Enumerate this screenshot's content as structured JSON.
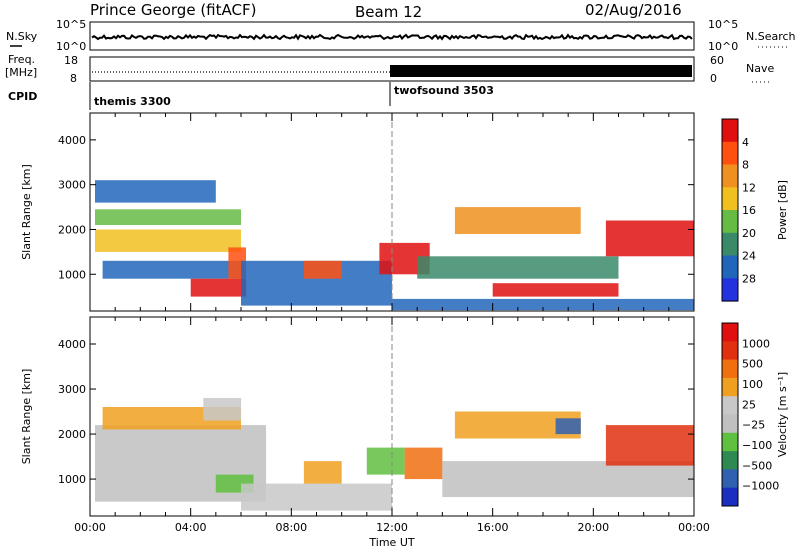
{
  "header": {
    "station": "Prince George (fitACF)",
    "beam": "Beam 12",
    "date": "02/Aug/2016"
  },
  "strips": {
    "nsky_label": "N.Sky",
    "nsky_ticks": [
      "10^5",
      "10^0"
    ],
    "nsearch_ticks": [
      "10^5",
      "10^0"
    ],
    "nsearch_label": "N.Search",
    "freq_label_1": "Freq.",
    "freq_label_2": "[MHz]",
    "freq_ticks": [
      "18",
      "8"
    ],
    "nave_ticks": [
      "60",
      "0"
    ],
    "nave_label": "Nave",
    "cpid_label": "CPID",
    "cpid_segments": [
      {
        "name": "themis 3300",
        "start": 0
      },
      {
        "name": "twofsound 3503",
        "start": 12
      }
    ]
  },
  "chart_data": [
    {
      "type": "heatmap",
      "title": "Power",
      "ylabel": "Slant Range [km]",
      "xlabel": "",
      "ylim": [
        180,
        4600
      ],
      "xlim": [
        0,
        24
      ],
      "yticks": [
        "1000",
        "2000",
        "3000",
        "4000"
      ],
      "ytick_values": [
        1000,
        2000,
        3000,
        4000
      ],
      "colorbar": {
        "label": "Power [dB]",
        "ticks": [
          "4",
          "8",
          "12",
          "16",
          "20",
          "24",
          "28"
        ],
        "colors": [
          "#2233dd",
          "#2266bb",
          "#3a8a6a",
          "#66bb44",
          "#f0c020",
          "#f09020",
          "#ff5010",
          "#e01010"
        ]
      },
      "regions": [
        {
          "t0": 0.2,
          "t1": 6.0,
          "r0": 1500,
          "r1": 2000,
          "level": 4
        },
        {
          "t0": 0.2,
          "t1": 6.0,
          "r0": 2100,
          "r1": 2450,
          "level": 3
        },
        {
          "t0": 0.2,
          "t1": 5.0,
          "r0": 2600,
          "r1": 3100,
          "level": 1
        },
        {
          "t0": 0.5,
          "t1": 6.0,
          "r0": 900,
          "r1": 1300,
          "level": 1
        },
        {
          "t0": 4.0,
          "t1": 6.2,
          "r0": 500,
          "r1": 900,
          "level": 7
        },
        {
          "t0": 5.5,
          "t1": 6.2,
          "r0": 900,
          "r1": 1600,
          "level": 6
        },
        {
          "t0": 6.0,
          "t1": 12.0,
          "r0": 300,
          "r1": 1300,
          "level": 1
        },
        {
          "t0": 8.5,
          "t1": 10.0,
          "r0": 900,
          "r1": 1300,
          "level": 6
        },
        {
          "t0": 11.5,
          "t1": 13.5,
          "r0": 1000,
          "r1": 1700,
          "level": 7
        },
        {
          "t0": 13.0,
          "t1": 21.0,
          "r0": 900,
          "r1": 1400,
          "level": 2
        },
        {
          "t0": 16.0,
          "t1": 21.0,
          "r0": 500,
          "r1": 800,
          "level": 7
        },
        {
          "t0": 14.5,
          "t1": 19.5,
          "r0": 1900,
          "r1": 2500,
          "level": 5
        },
        {
          "t0": 20.5,
          "t1": 24.0,
          "r0": 1400,
          "r1": 2200,
          "level": 7
        },
        {
          "t0": 12.0,
          "t1": 24.0,
          "r0": 200,
          "r1": 450,
          "level": 1
        }
      ]
    },
    {
      "type": "heatmap",
      "title": "Velocity",
      "ylabel": "Slant Range [km]",
      "xlabel": "Time UT",
      "ylim": [
        180,
        4600
      ],
      "xlim": [
        0,
        24
      ],
      "yticks": [
        "1000",
        "2000",
        "3000",
        "4000"
      ],
      "ytick_values": [
        1000,
        2000,
        3000,
        4000
      ],
      "xticks": [
        "00:00",
        "04:00",
        "08:00",
        "12:00",
        "16:00",
        "20:00",
        "00:00"
      ],
      "xtick_values": [
        0,
        4,
        8,
        12,
        16,
        20,
        24
      ],
      "colorbar": {
        "label": "Velocity [m s⁻¹]",
        "ticks": [
          "1000",
          "500",
          "100",
          "25",
          "−25",
          "−100",
          "−500",
          "−1000"
        ],
        "colors": [
          "#1a2fbf",
          "#3060b0",
          "#2e8a50",
          "#60c040",
          "#c0c0c0",
          "#c8c8c8",
          "#f0a020",
          "#f07010",
          "#e03010",
          "#e01010"
        ]
      },
      "regions": [
        {
          "t0": 0.2,
          "t1": 7.0,
          "r0": 500,
          "r1": 2200,
          "level": 4
        },
        {
          "t0": 0.5,
          "t1": 6.0,
          "r0": 2100,
          "r1": 2600,
          "level": 6
        },
        {
          "t0": 4.5,
          "t1": 6.0,
          "r0": 2300,
          "r1": 2800,
          "level": 5
        },
        {
          "t0": 5.0,
          "t1": 6.5,
          "r0": 700,
          "r1": 1100,
          "level": 3
        },
        {
          "t0": 6.0,
          "t1": 12.0,
          "r0": 300,
          "r1": 900,
          "level": 5
        },
        {
          "t0": 8.5,
          "t1": 10.0,
          "r0": 900,
          "r1": 1400,
          "level": 6
        },
        {
          "t0": 11.0,
          "t1": 12.5,
          "r0": 1100,
          "r1": 1700,
          "level": 3
        },
        {
          "t0": 12.5,
          "t1": 14.0,
          "r0": 1000,
          "r1": 1700,
          "level": 7
        },
        {
          "t0": 14.0,
          "t1": 24.0,
          "r0": 600,
          "r1": 1400,
          "level": 4
        },
        {
          "t0": 14.5,
          "t1": 19.5,
          "r0": 1900,
          "r1": 2500,
          "level": 6
        },
        {
          "t0": 18.5,
          "t1": 19.5,
          "r0": 2000,
          "r1": 2350,
          "level": 1
        },
        {
          "t0": 20.5,
          "t1": 24.0,
          "r0": 1300,
          "r1": 2200,
          "level": 8
        }
      ]
    }
  ]
}
